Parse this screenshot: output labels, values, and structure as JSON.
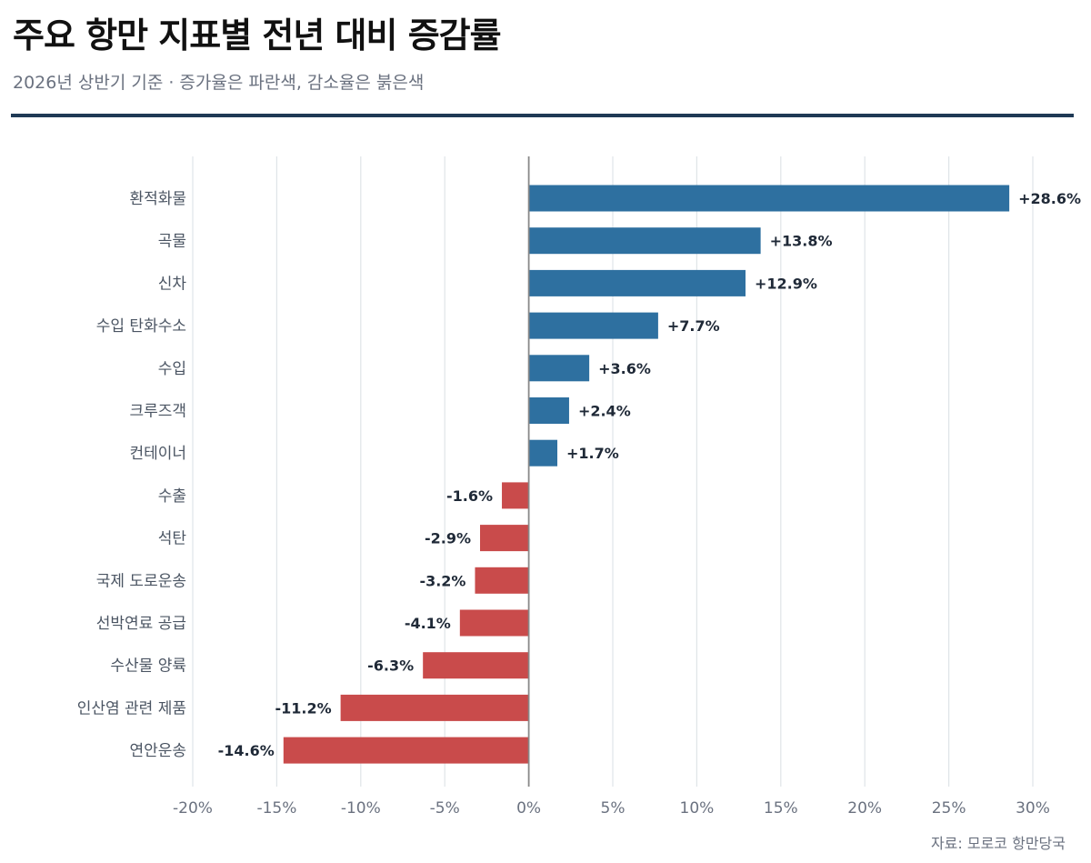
{
  "header": {
    "title": "주요 항만 지표별 전년 대비 증감률",
    "subtitle": "2026년 상반기 기준 · 증가율은 파란색, 감소율은 붉은색"
  },
  "footer": {
    "source": "자료: 모로코 항만당국"
  },
  "colors": {
    "increase": "#2e70a0",
    "decrease": "#c94b4b",
    "rule": "#1f3a55",
    "grid": "#dfe4e8",
    "zero_axis": "#888888"
  },
  "chart_data": {
    "type": "bar",
    "orientation": "horizontal",
    "xlim": [
      -20,
      30
    ],
    "xticks": [
      "-20%",
      "-15%",
      "-10%",
      "-5%",
      "0%",
      "5%",
      "10%",
      "15%",
      "20%",
      "25%",
      "30%"
    ],
    "xtick_values": [
      -20,
      -15,
      -10,
      -5,
      0,
      5,
      10,
      15,
      20,
      25,
      30
    ],
    "grid": true,
    "categories": [
      "환적화물",
      "곡물",
      "신차",
      "수입 탄화수소",
      "수입",
      "크루즈객",
      "컨테이너",
      "수출",
      "석탄",
      "국제 도로운송",
      "선박연료 공급",
      "수산물 양륙",
      "인산염 관련 제품",
      "연안운송"
    ],
    "values": [
      28.6,
      13.8,
      12.9,
      7.7,
      3.6,
      2.4,
      1.7,
      -1.6,
      -2.9,
      -3.2,
      -4.1,
      -6.3,
      -11.2,
      -14.6
    ],
    "value_labels": [
      "+28.6%",
      "+13.8%",
      "+12.9%",
      "+7.7%",
      "+3.6%",
      "+2.4%",
      "+1.7%",
      "-1.6%",
      "-2.9%",
      "-3.2%",
      "-4.1%",
      "-6.3%",
      "-11.2%",
      "-14.6%"
    ]
  }
}
